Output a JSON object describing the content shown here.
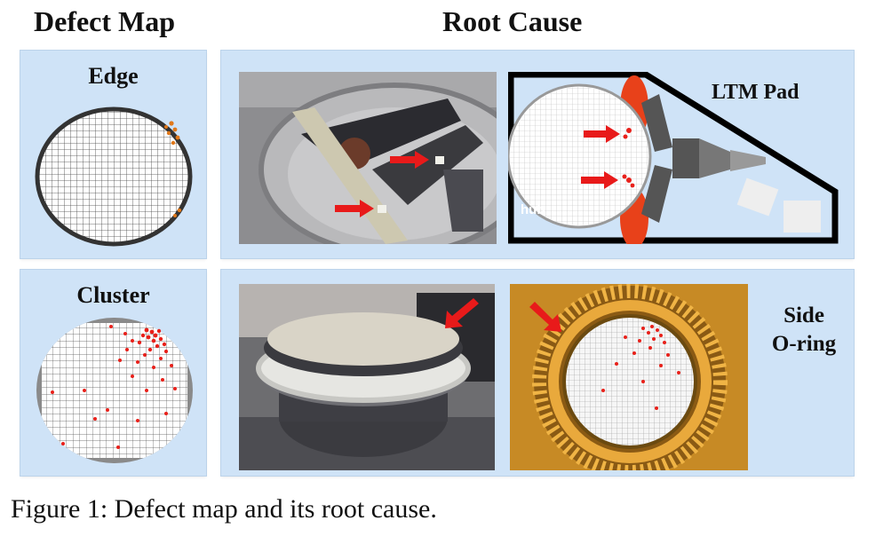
{
  "headers": {
    "defect_map": "Defect Map",
    "root_cause": "Root Cause"
  },
  "rows": {
    "edge": {
      "map_label": "Edge",
      "cause_label": "LTM Pad",
      "diagram_text": "hub"
    },
    "cluster": {
      "map_label": "Cluster",
      "cause_label_line1": "Side",
      "cause_label_line2": "O-ring"
    }
  },
  "caption": "Figure 1: Defect map and its root cause.",
  "colors": {
    "panel": "#cfe3f7",
    "defect": "#e8201a",
    "arrow": "#e81a1a",
    "pad": "#e8411a"
  }
}
